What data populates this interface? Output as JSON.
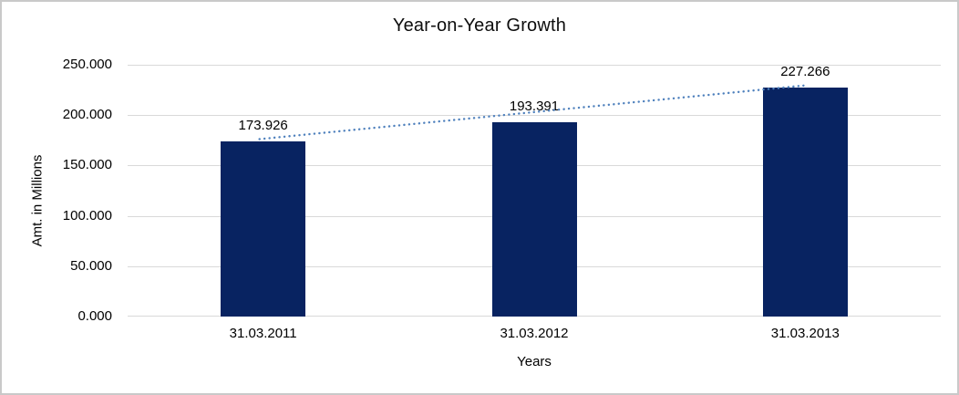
{
  "chart": {
    "title": "Year-on-Year Growth",
    "y_axis_title": "Amt. in Millions",
    "x_axis_title": "Years"
  },
  "chart_data": {
    "type": "bar",
    "title": "Year-on-Year Growth",
    "xlabel": "Years",
    "ylabel": "Amt. in Millions",
    "categories": [
      "31.03.2011",
      "31.03.2012",
      "31.03.2013"
    ],
    "values": [
      173926,
      193391,
      227266
    ],
    "value_labels": [
      "173.926",
      "193.391",
      "227.266"
    ],
    "ylim": [
      0,
      250000
    ],
    "yticks": [
      0,
      50000,
      100000,
      150000,
      200000,
      250000
    ],
    "ytick_labels": [
      "0.000",
      "50.000",
      "100.000",
      "150.000",
      "200.000",
      "250.000"
    ],
    "grid": true,
    "legend": false,
    "bar_color": "#082361",
    "gridline_color": "#d9d9d9",
    "trendline": {
      "type": "linear",
      "style": "dotted",
      "color": "#4f81bd"
    }
  }
}
